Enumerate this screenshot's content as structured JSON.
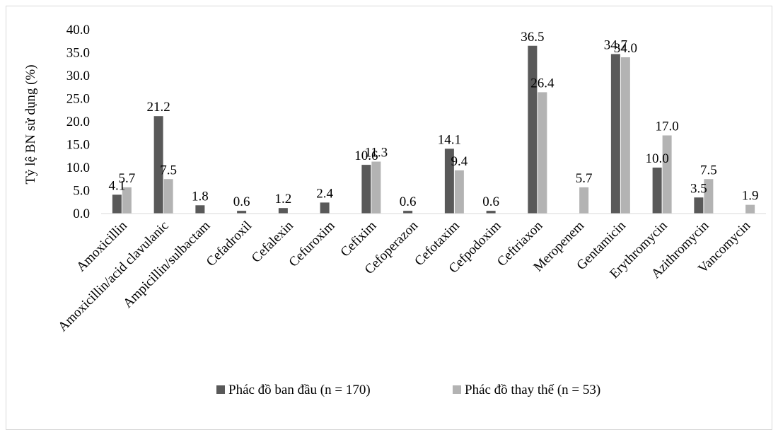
{
  "chart_data": {
    "type": "bar",
    "title": "",
    "xlabel": "",
    "ylabel": "Tỷ lệ BN sử dụng (%)",
    "ylim": [
      0,
      40
    ],
    "ytick_step": 5,
    "ytick_labels": [
      "0.0",
      "5.0",
      "10.0",
      "15.0",
      "20.0",
      "25.0",
      "30.0",
      "35.0",
      "40.0"
    ],
    "grid": false,
    "legend_position": "bottom",
    "categories": [
      "Amoxicillin",
      "Amoxicillin/acid clavulanic",
      "Ampicillin/sulbactam",
      "Cefadroxil",
      "Cefalexin",
      "Cefuroxim",
      "Cefixim",
      "Cefoperazon",
      "Cefotaxim",
      "Cefpodoxim",
      "Ceftriaxon",
      "Meropenem",
      "Gentamicin",
      "Erythromycin",
      "Azithromycin",
      "Vancomycin"
    ],
    "series": [
      {
        "name": "Phác đồ ban đầu (n = 170)",
        "color": "#595959",
        "values": [
          4.1,
          21.2,
          1.8,
          0.6,
          1.2,
          2.4,
          10.6,
          0.6,
          14.1,
          0.6,
          36.5,
          null,
          34.7,
          10.0,
          3.5,
          null
        ]
      },
      {
        "name": "Phác đồ thay thế (n = 53)",
        "color": "#b3b3b3",
        "values": [
          5.7,
          7.5,
          null,
          null,
          null,
          null,
          11.3,
          null,
          9.4,
          null,
          26.4,
          5.7,
          34.0,
          17.0,
          7.5,
          1.9
        ]
      }
    ]
  }
}
